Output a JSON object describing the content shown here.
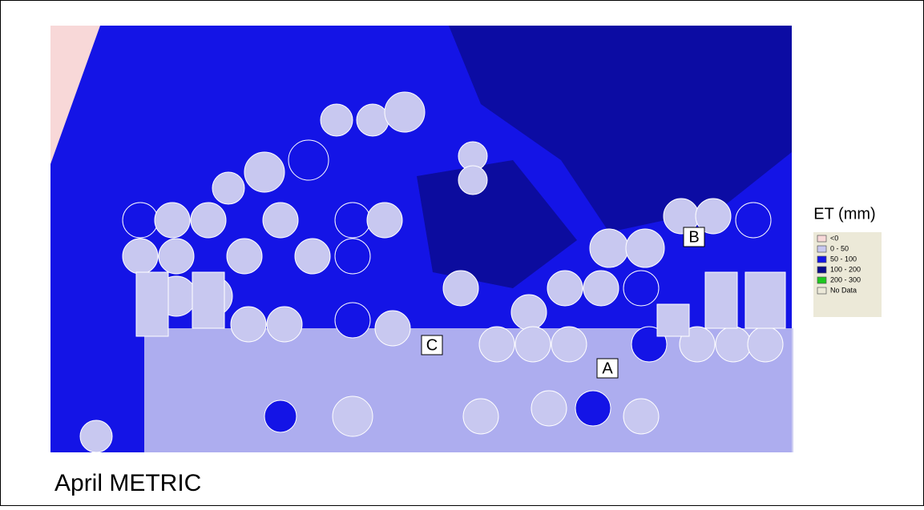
{
  "map": {
    "caption": "April METRIC",
    "sites": [
      {
        "label": "A"
      },
      {
        "label": "B"
      },
      {
        "label": "C"
      }
    ],
    "legend": {
      "title": "ET (mm)",
      "items": [
        {
          "label": "<0",
          "color": "#f8d8d8"
        },
        {
          "label": "0 - 50",
          "color": "#c8c8f0"
        },
        {
          "label": "50 - 100",
          "color": "#1414e6"
        },
        {
          "label": "100 - 200",
          "color": "#0a0a8c"
        },
        {
          "label": "200 - 300",
          "color": "#1ec81e"
        },
        {
          "label": "No Data",
          "color": "#ece9d8"
        }
      ]
    }
  }
}
